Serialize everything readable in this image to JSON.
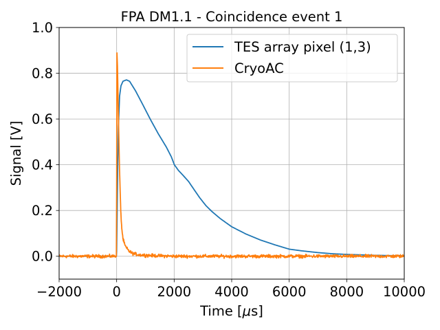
{
  "chart_data": {
    "type": "line",
    "title": "FPA DM1.1 - Coincidence event 1",
    "xlabel": "Time [μs]",
    "xlabel_prefix": "Time [",
    "xlabel_mu": "μ",
    "xlabel_suffix": "s]",
    "ylabel": "Signal [V]",
    "xlim": [
      -2000,
      10000
    ],
    "ylim": [
      -0.1,
      1.0
    ],
    "xticks": [
      -2000,
      0,
      2000,
      4000,
      6000,
      8000,
      10000
    ],
    "xtick_labels": [
      "−2000",
      "0",
      "2000",
      "4000",
      "6000",
      "8000",
      "10000"
    ],
    "yticks": [
      0.0,
      0.2,
      0.4,
      0.6,
      0.8,
      1.0
    ],
    "ytick_labels": [
      "0.0",
      "0.2",
      "0.4",
      "0.6",
      "0.8",
      "1.0"
    ],
    "grid": true,
    "legend_position": "top-right",
    "series": [
      {
        "name": "TES array pixel (1,3)",
        "color": "#1f77b4",
        "noise": 0.0,
        "x": [
          -2000,
          -10,
          0,
          20,
          40,
          62,
          102,
          150,
          220,
          340,
          450,
          657,
          900,
          1174,
          1450,
          1729,
          1900,
          2007,
          2150,
          2300,
          2500,
          2700,
          2881,
          3100,
          3317,
          3600,
          4000,
          4500,
          5000,
          5500,
          6000,
          6412,
          7000,
          7500,
          8000,
          9000,
          10000
        ],
        "y": [
          0.0,
          0.0,
          0.02,
          0.22,
          0.42,
          0.567,
          0.7,
          0.745,
          0.765,
          0.771,
          0.765,
          0.723,
          0.665,
          0.598,
          0.535,
          0.477,
          0.435,
          0.4,
          0.375,
          0.355,
          0.327,
          0.29,
          0.257,
          0.222,
          0.195,
          0.165,
          0.129,
          0.097,
          0.071,
          0.05,
          0.031,
          0.024,
          0.016,
          0.011,
          0.008,
          0.004,
          0.002
        ]
      },
      {
        "name": "CryoAC",
        "color": "#ff7f0e",
        "noise": 0.006,
        "x": [
          -2000,
          -10,
          0,
          10,
          30,
          60,
          100,
          143,
          180,
          221,
          280,
          340,
          450,
          580,
          800,
          1200,
          2000,
          10000
        ],
        "y": [
          0.0,
          0.0,
          0.3,
          0.89,
          0.82,
          0.62,
          0.38,
          0.196,
          0.12,
          0.076,
          0.05,
          0.036,
          0.02,
          0.011,
          0.006,
          0.003,
          0.0,
          0.0
        ]
      }
    ]
  }
}
